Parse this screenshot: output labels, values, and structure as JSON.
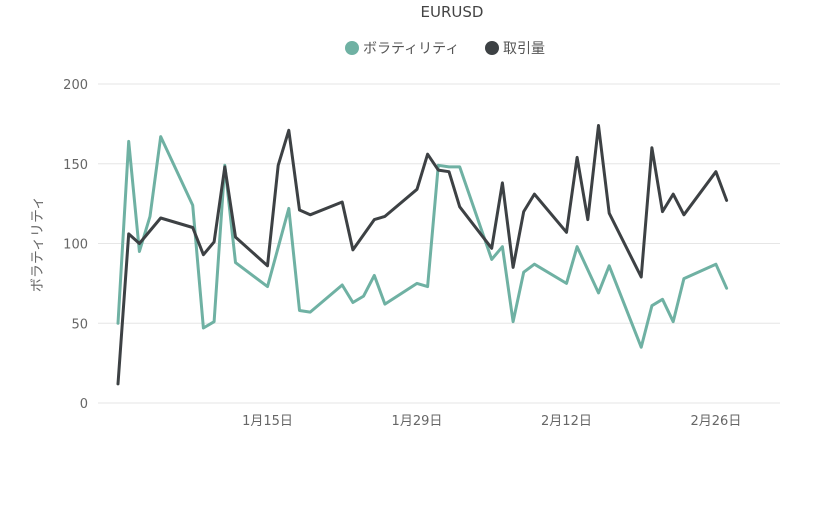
{
  "chart_data": {
    "type": "line",
    "title": "EURUSD",
    "ylabel": "ボラティリティ",
    "xlabel": "",
    "ylim": [
      0,
      200
    ],
    "yticks": [
      0,
      50,
      100,
      150,
      200
    ],
    "grid": true,
    "legend_position": "top",
    "x_tick_labels": [
      "1月15日",
      "1月29日",
      "2月12日",
      "2月26日"
    ],
    "x_tick_days": [
      15,
      29,
      43,
      57
    ],
    "xlim": [
      1,
      63
    ],
    "series": [
      {
        "name": "ボラティリティ",
        "color": "#6fb1a3",
        "points": [
          [
            1,
            50
          ],
          [
            2,
            164
          ],
          [
            3,
            95
          ],
          [
            4,
            117
          ],
          [
            5,
            167
          ],
          [
            8,
            124
          ],
          [
            9,
            47
          ],
          [
            10,
            51
          ],
          [
            11,
            149
          ],
          [
            12,
            88
          ],
          [
            15,
            73
          ],
          [
            17,
            122
          ],
          [
            18,
            58
          ],
          [
            19,
            57
          ],
          [
            22,
            74
          ],
          [
            23,
            63
          ],
          [
            24,
            67
          ],
          [
            25,
            80
          ],
          [
            26,
            62
          ],
          [
            29,
            75
          ],
          [
            30,
            73
          ],
          [
            31,
            149
          ],
          [
            32,
            148
          ],
          [
            33,
            148
          ],
          [
            36,
            90
          ],
          [
            37,
            98
          ],
          [
            38,
            51
          ],
          [
            39,
            82
          ],
          [
            40,
            87
          ],
          [
            43,
            75
          ],
          [
            44,
            98
          ],
          [
            46,
            69
          ],
          [
            47,
            86
          ],
          [
            50,
            35
          ],
          [
            51,
            61
          ],
          [
            52,
            65
          ],
          [
            53,
            51
          ],
          [
            54,
            78
          ],
          [
            57,
            87
          ],
          [
            58,
            72
          ]
        ]
      },
      {
        "name": "取引量",
        "color": "#3d4144",
        "points": [
          [
            1,
            12
          ],
          [
            2,
            106
          ],
          [
            3,
            100
          ],
          [
            5,
            116
          ],
          [
            8,
            110
          ],
          [
            9,
            93
          ],
          [
            10,
            101
          ],
          [
            11,
            148
          ],
          [
            12,
            104
          ],
          [
            15,
            86
          ],
          [
            16,
            149
          ],
          [
            17,
            171
          ],
          [
            18,
            121
          ],
          [
            19,
            118
          ],
          [
            22,
            126
          ],
          [
            23,
            96
          ],
          [
            25,
            115
          ],
          [
            26,
            117
          ],
          [
            29,
            134
          ],
          [
            30,
            156
          ],
          [
            31,
            146
          ],
          [
            32,
            145
          ],
          [
            33,
            123
          ],
          [
            36,
            97
          ],
          [
            37,
            138
          ],
          [
            38,
            85
          ],
          [
            39,
            120
          ],
          [
            40,
            131
          ],
          [
            43,
            107
          ],
          [
            44,
            154
          ],
          [
            45,
            115
          ],
          [
            46,
            174
          ],
          [
            47,
            119
          ],
          [
            50,
            79
          ],
          [
            51,
            160
          ],
          [
            52,
            120
          ],
          [
            53,
            131
          ],
          [
            54,
            118
          ],
          [
            57,
            145
          ],
          [
            58,
            127
          ]
        ]
      }
    ]
  }
}
